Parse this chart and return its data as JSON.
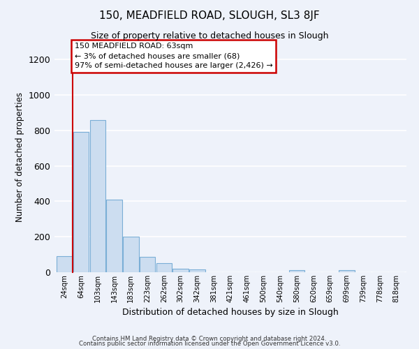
{
  "title": "150, MEADFIELD ROAD, SLOUGH, SL3 8JF",
  "subtitle": "Size of property relative to detached houses in Slough",
  "xlabel": "Distribution of detached houses by size in Slough",
  "ylabel": "Number of detached properties",
  "bar_color": "#ccddf0",
  "bar_edge_color": "#7aaed6",
  "background_color": "#eef2fa",
  "grid_color": "#ffffff",
  "annotation_box_color": "#ffffff",
  "annotation_border_color": "#cc0000",
  "red_line_color": "#cc0000",
  "bin_labels": [
    "24sqm",
    "64sqm",
    "103sqm",
    "143sqm",
    "183sqm",
    "223sqm",
    "262sqm",
    "302sqm",
    "342sqm",
    "381sqm",
    "421sqm",
    "461sqm",
    "500sqm",
    "540sqm",
    "580sqm",
    "620sqm",
    "659sqm",
    "699sqm",
    "739sqm",
    "778sqm",
    "818sqm"
  ],
  "bar_heights": [
    90,
    790,
    860,
    410,
    200,
    85,
    50,
    18,
    15,
    0,
    0,
    0,
    0,
    0,
    10,
    0,
    0,
    10,
    0,
    0,
    0
  ],
  "ylim": [
    0,
    1300
  ],
  "yticks": [
    0,
    200,
    400,
    600,
    800,
    1000,
    1200
  ],
  "red_line_x": 0.5,
  "annotation_text": "150 MEADFIELD ROAD: 63sqm\n← 3% of detached houses are smaller (68)\n97% of semi-detached houses are larger (2,426) →",
  "footer1": "Contains HM Land Registry data © Crown copyright and database right 2024.",
  "footer2": "Contains public sector information licensed under the Open Government Licence v3.0."
}
